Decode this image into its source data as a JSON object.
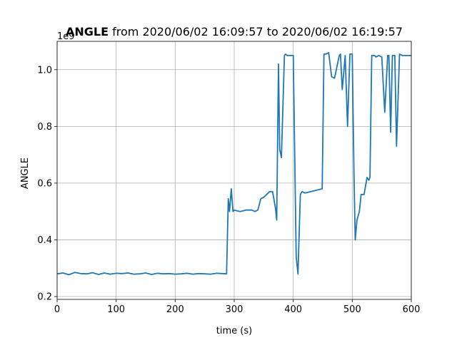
{
  "chart_data": {
    "type": "line",
    "title_bold": "ANGLE",
    "title_rest": " from 2020/06/02 16:09:57 to 2020/06/02 16:19:57",
    "xlabel": "time (s)",
    "ylabel": "ANGLE",
    "y_offset_label": "1e9",
    "xlim": [
      0,
      600
    ],
    "ylim": [
      0.19,
      1.1
    ],
    "xticks": [
      0,
      100,
      200,
      300,
      400,
      500,
      600
    ],
    "xtick_labels": [
      "0",
      "100",
      "200",
      "300",
      "400",
      "500",
      "600"
    ],
    "yticks": [
      0.2,
      0.4,
      0.6,
      0.8,
      1.0
    ],
    "ytick_labels": [
      "0.2",
      "0.4",
      "0.6",
      "0.8",
      "1.0"
    ],
    "grid": true,
    "line_color": "#1f77b4",
    "series": [
      {
        "x": [
          0,
          10,
          20,
          30,
          40,
          50,
          60,
          70,
          80,
          90,
          100,
          110,
          120,
          130,
          140,
          150,
          160,
          170,
          180,
          190,
          200,
          210,
          220,
          230,
          240,
          250,
          260,
          270,
          280,
          287,
          290,
          292,
          295,
          298,
          300,
          310,
          320,
          330,
          335,
          340,
          345,
          350,
          360,
          365,
          370,
          372,
          375,
          377,
          380,
          385,
          387,
          390,
          400,
          405,
          408,
          412,
          415,
          420,
          430,
          440,
          449,
          452,
          455,
          460,
          465,
          470,
          478,
          480,
          483,
          488,
          492,
          496,
          500,
          503,
          505,
          508,
          512,
          515,
          520,
          525,
          528,
          530,
          533,
          538,
          540,
          545,
          550,
          555,
          560,
          562,
          565,
          568,
          570,
          572,
          575,
          580,
          585,
          588,
          590,
          595,
          600
        ],
        "values": [
          0.28,
          0.283,
          0.277,
          0.285,
          0.281,
          0.28,
          0.284,
          0.278,
          0.283,
          0.279,
          0.282,
          0.281,
          0.283,
          0.279,
          0.28,
          0.283,
          0.278,
          0.282,
          0.28,
          0.281,
          0.279,
          0.28,
          0.282,
          0.279,
          0.281,
          0.28,
          0.279,
          0.282,
          0.281,
          0.28,
          0.545,
          0.5,
          0.58,
          0.5,
          0.505,
          0.5,
          0.505,
          0.505,
          0.5,
          0.505,
          0.545,
          0.55,
          0.57,
          0.57,
          0.51,
          0.47,
          1.02,
          0.72,
          0.69,
          1.05,
          1.055,
          1.05,
          1.05,
          0.34,
          0.28,
          0.56,
          0.57,
          0.565,
          0.57,
          0.575,
          0.58,
          1.055,
          1.055,
          1.06,
          0.975,
          0.97,
          1.05,
          1.055,
          0.93,
          1.05,
          0.8,
          1.055,
          1.055,
          0.62,
          0.4,
          0.47,
          0.5,
          0.56,
          0.56,
          0.62,
          0.61,
          0.62,
          1.05,
          1.05,
          1.045,
          1.05,
          1.045,
          0.85,
          1.05,
          1.05,
          0.78,
          1.05,
          1.05,
          1.05,
          0.73,
          1.055,
          1.05,
          1.05,
          1.05,
          1.05,
          1.05
        ]
      }
    ]
  }
}
